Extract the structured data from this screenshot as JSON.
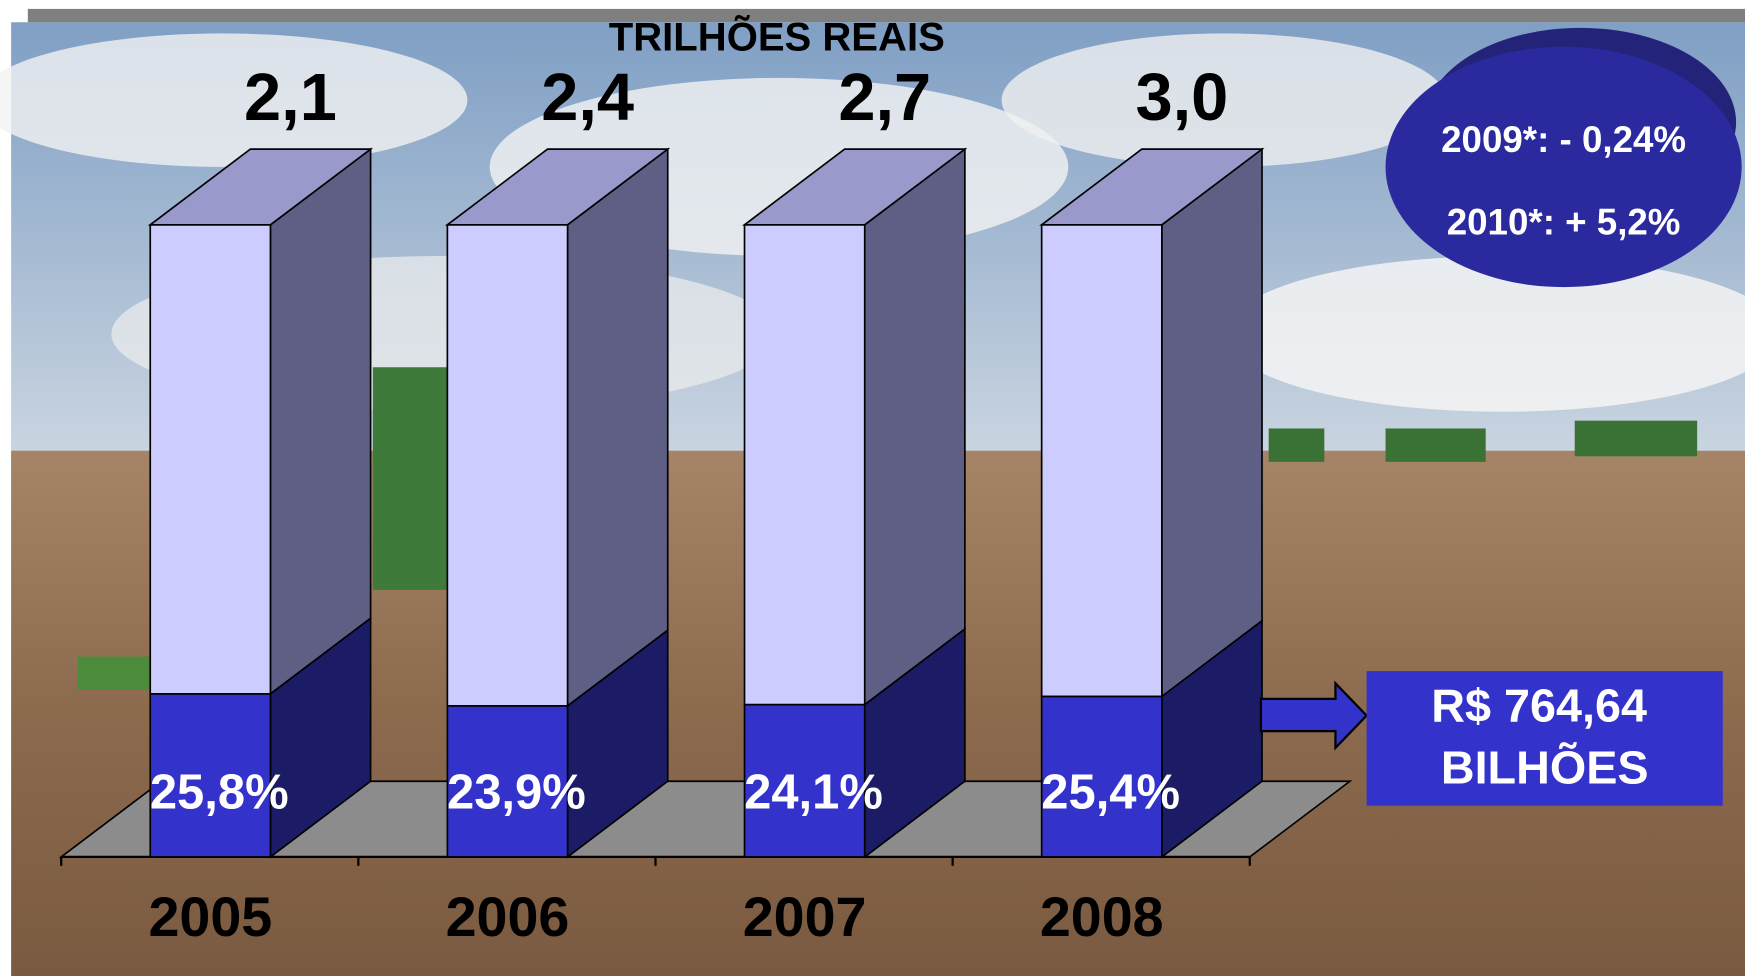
{
  "chart_data": {
    "type": "bar3d_stacked",
    "title": "TRILHÕES REAIS",
    "categories": [
      "2005",
      "2006",
      "2007",
      "2008"
    ],
    "series": [
      {
        "color": "#3333cc",
        "side_color": "#1c1c66",
        "values": [
          25.8,
          23.9,
          24.1,
          25.4
        ],
        "value_labels": [
          "25,8%",
          "23,9%",
          "24,1%",
          "25,4%"
        ]
      },
      {
        "color": "#ccccff",
        "side_color": "#5f5f86",
        "values": [
          74.2,
          76.1,
          75.9,
          74.6
        ]
      }
    ],
    "totals": {
      "values": [
        2.1,
        2.4,
        2.7,
        3.0
      ],
      "value_labels": [
        "2,1",
        "2,4",
        "2,7",
        "3,0"
      ]
    },
    "ylim": [
      0,
      100
    ],
    "annotations": {
      "forecast": [
        "2009*: - 0,24%",
        "2010*: + 5,2%"
      ],
      "callout": [
        "R$ 764,64",
        "BILHÕES"
      ]
    }
  }
}
